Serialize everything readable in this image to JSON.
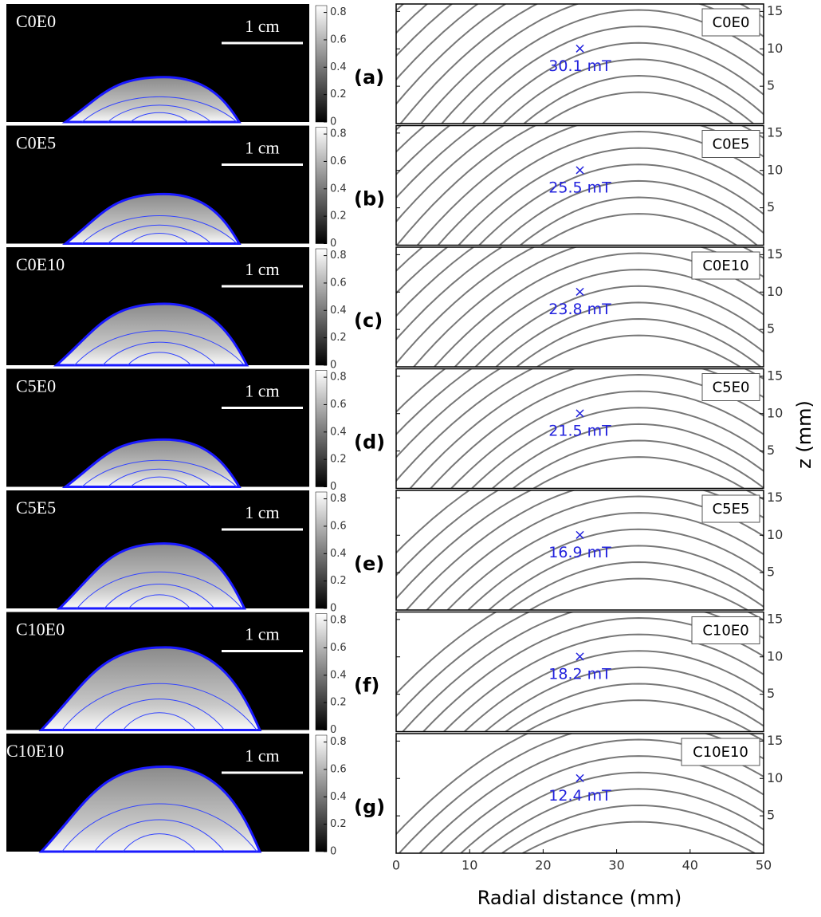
{
  "panels": [
    {
      "letter": "(a)",
      "sample": "C0E0",
      "scale_bar": "1 cm",
      "colorbar_ticks": [
        0,
        0.2,
        0.4,
        0.6,
        0.8
      ],
      "legend": "C0E0",
      "marker_label": "30.1 mT"
    },
    {
      "letter": "(b)",
      "sample": "C0E5",
      "scale_bar": "1 cm",
      "colorbar_ticks": [
        0,
        0.2,
        0.4,
        0.6,
        0.8
      ],
      "legend": "C0E5",
      "marker_label": "25.5 mT"
    },
    {
      "letter": "(c)",
      "sample": "C0E10",
      "scale_bar": "1 cm",
      "colorbar_ticks": [
        0,
        0.2,
        0.4,
        0.6,
        0.8
      ],
      "legend": "C0E10",
      "marker_label": "23.8 mT"
    },
    {
      "letter": "(d)",
      "sample": "C5E0",
      "scale_bar": "1 cm",
      "colorbar_ticks": [
        0,
        0.2,
        0.4,
        0.6,
        0.8
      ],
      "legend": "C5E0",
      "marker_label": "21.5 mT"
    },
    {
      "letter": "(e)",
      "sample": "C5E5",
      "scale_bar": "1 cm",
      "colorbar_ticks": [
        0,
        0.2,
        0.4,
        0.6,
        0.8
      ],
      "legend": "C5E5",
      "marker_label": "16.9 mT"
    },
    {
      "letter": "(f)",
      "sample": "C10E0",
      "scale_bar": "1 cm",
      "colorbar_ticks": [
        0,
        0.2,
        0.4,
        0.6,
        0.8
      ],
      "legend": "C10E0",
      "marker_label": "18.2 mT"
    },
    {
      "letter": "(g)",
      "sample": "C10E10",
      "scale_bar": "1 cm",
      "colorbar_ticks": [
        0,
        0.2,
        0.4,
        0.6,
        0.8
      ],
      "legend": "C10E10",
      "marker_label": "12.4 mT"
    }
  ],
  "axes": {
    "xlabel": "Radial distance (mm)",
    "ylabel": "z (mm)",
    "xlim": [
      0,
      50
    ],
    "xticks": [
      0,
      10,
      20,
      30,
      40,
      50
    ],
    "ylim": [
      0,
      16
    ],
    "yticks": [
      5,
      10,
      15
    ]
  },
  "marker": {
    "x": 25,
    "z": 10
  }
}
